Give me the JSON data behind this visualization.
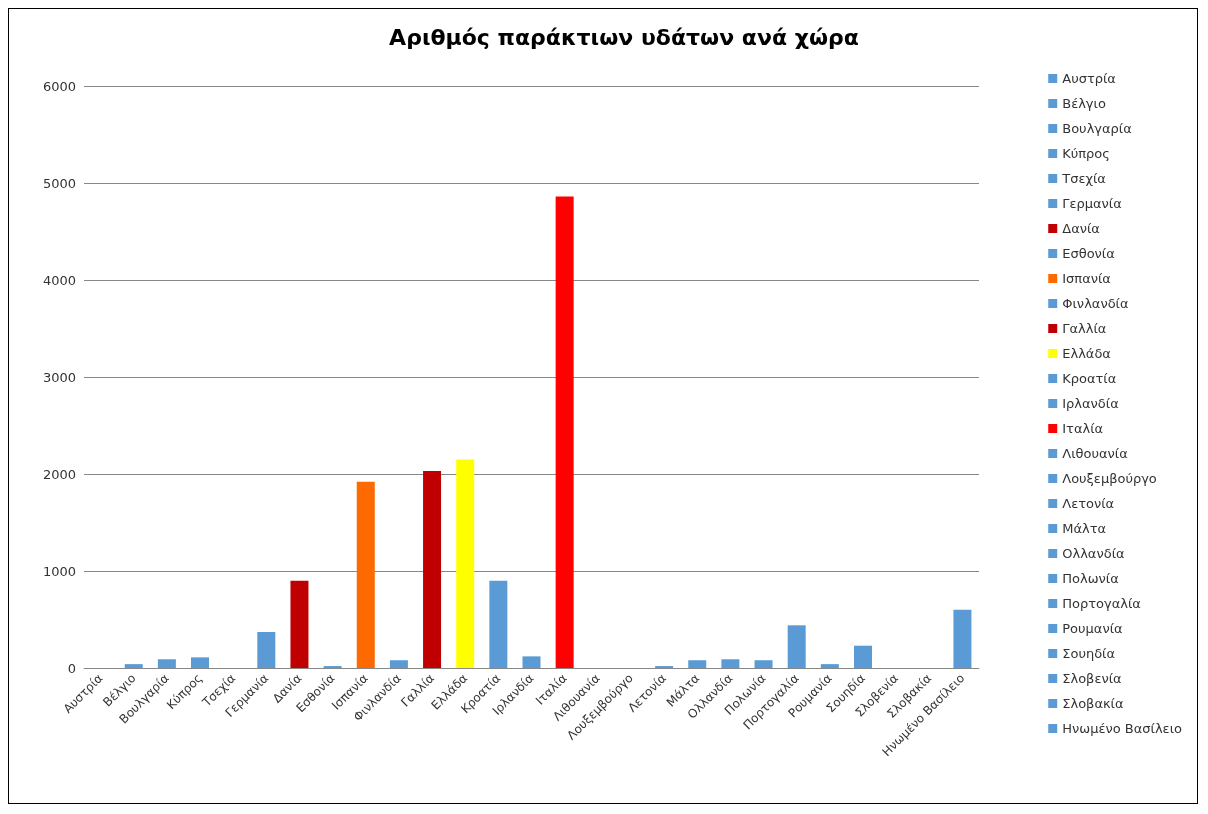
{
  "chart_data": {
    "type": "bar",
    "title": "Αριθμός παράκτιων υδάτων ανά χώρα",
    "categories": [
      "Αυστρία",
      "Βέλγιο",
      "Βουλγαρία",
      "Κύπρος",
      "Τσεχία",
      "Γερμανία",
      "Δανία",
      "Εσθονία",
      "Ισπανία",
      "Φινλανδία",
      "Γαλλία",
      "Ελλάδα",
      "Κροατία",
      "Ιρλανδία",
      "Ιταλία",
      "Λιθουανία",
      "Λουξεμβούργο",
      "Λετονία",
      "Μάλτα",
      "Ολλανδία",
      "Πολωνία",
      "Πορτογαλία",
      "Ρουμανία",
      "Σουηδία",
      "Σλοβενία",
      "Σλοβακία",
      "Ηνωμένο Βασίλειο"
    ],
    "series": [
      {
        "name": "Αυστρία",
        "color": "#5b9bd5",
        "values": [
          0,
          null,
          null,
          null,
          null,
          null,
          null,
          null,
          null,
          null,
          null,
          null,
          null,
          null,
          null,
          null,
          null,
          null,
          null,
          null,
          null,
          null,
          null,
          null,
          null,
          null,
          null
        ]
      },
      {
        "name": "Βέλγιο",
        "color": "#5b9bd5",
        "values": [
          null,
          40,
          null,
          null,
          null,
          null,
          null,
          null,
          null,
          null,
          null,
          null,
          null,
          null,
          null,
          null,
          null,
          null,
          null,
          null,
          null,
          null,
          null,
          null,
          null,
          null,
          null
        ]
      },
      {
        "name": "Βουλγαρία",
        "color": "#5b9bd5",
        "values": [
          null,
          null,
          90,
          null,
          null,
          null,
          null,
          null,
          null,
          null,
          null,
          null,
          null,
          null,
          null,
          null,
          null,
          null,
          null,
          null,
          null,
          null,
          null,
          null,
          null,
          null,
          null
        ]
      },
      {
        "name": "Κύπρος",
        "color": "#5b9bd5",
        "values": [
          null,
          null,
          null,
          110,
          null,
          null,
          null,
          null,
          null,
          null,
          null,
          null,
          null,
          null,
          null,
          null,
          null,
          null,
          null,
          null,
          null,
          null,
          null,
          null,
          null,
          null,
          null
        ]
      },
      {
        "name": "Τσεχία",
        "color": "#5b9bd5",
        "values": [
          null,
          null,
          null,
          null,
          0,
          null,
          null,
          null,
          null,
          null,
          null,
          null,
          null,
          null,
          null,
          null,
          null,
          null,
          null,
          null,
          null,
          null,
          null,
          null,
          null,
          null,
          null
        ]
      },
      {
        "name": "Γερμανία",
        "color": "#5b9bd5",
        "values": [
          null,
          null,
          null,
          null,
          null,
          370,
          null,
          null,
          null,
          null,
          null,
          null,
          null,
          null,
          null,
          null,
          null,
          null,
          null,
          null,
          null,
          null,
          null,
          null,
          null,
          null,
          null
        ]
      },
      {
        "name": "Δανία",
        "color": "#c00000",
        "values": [
          null,
          null,
          null,
          null,
          null,
          null,
          900,
          null,
          null,
          null,
          null,
          null,
          null,
          null,
          null,
          null,
          null,
          null,
          null,
          null,
          null,
          null,
          null,
          null,
          null,
          null,
          null
        ]
      },
      {
        "name": "Εσθονία",
        "color": "#5b9bd5",
        "values": [
          null,
          null,
          null,
          null,
          null,
          null,
          null,
          20,
          null,
          null,
          null,
          null,
          null,
          null,
          null,
          null,
          null,
          null,
          null,
          null,
          null,
          null,
          null,
          null,
          null,
          null,
          null
        ]
      },
      {
        "name": "Ισπανία",
        "color": "#ff6a00",
        "values": [
          null,
          null,
          null,
          null,
          null,
          null,
          null,
          null,
          1920,
          null,
          null,
          null,
          null,
          null,
          null,
          null,
          null,
          null,
          null,
          null,
          null,
          null,
          null,
          null,
          null,
          null,
          null
        ]
      },
      {
        "name": "Φινλανδία",
        "color": "#5b9bd5",
        "values": [
          null,
          null,
          null,
          null,
          null,
          null,
          null,
          null,
          null,
          80,
          null,
          null,
          null,
          null,
          null,
          null,
          null,
          null,
          null,
          null,
          null,
          null,
          null,
          null,
          null,
          null,
          null
        ]
      },
      {
        "name": "Γαλλία",
        "color": "#c00000",
        "values": [
          null,
          null,
          null,
          null,
          null,
          null,
          null,
          null,
          null,
          null,
          2030,
          null,
          null,
          null,
          null,
          null,
          null,
          null,
          null,
          null,
          null,
          null,
          null,
          null,
          null,
          null,
          null
        ]
      },
      {
        "name": "Ελλάδα",
        "color": "#ffff00",
        "values": [
          null,
          null,
          null,
          null,
          null,
          null,
          null,
          null,
          null,
          null,
          null,
          2150,
          null,
          null,
          null,
          null,
          null,
          null,
          null,
          null,
          null,
          null,
          null,
          null,
          null,
          null,
          null
        ]
      },
      {
        "name": "Κροατία",
        "color": "#5b9bd5",
        "values": [
          null,
          null,
          null,
          null,
          null,
          null,
          null,
          null,
          null,
          null,
          null,
          null,
          900,
          null,
          null,
          null,
          null,
          null,
          null,
          null,
          null,
          null,
          null,
          null,
          null,
          null,
          null
        ]
      },
      {
        "name": "Ιρλανδία",
        "color": "#5b9bd5",
        "values": [
          null,
          null,
          null,
          null,
          null,
          null,
          null,
          null,
          null,
          null,
          null,
          null,
          null,
          120,
          null,
          null,
          null,
          null,
          null,
          null,
          null,
          null,
          null,
          null,
          null,
          null,
          null
        ]
      },
      {
        "name": "Ιταλία",
        "color": "#ff0000",
        "values": [
          null,
          null,
          null,
          null,
          null,
          null,
          null,
          null,
          null,
          null,
          null,
          null,
          null,
          null,
          4860,
          null,
          null,
          null,
          null,
          null,
          null,
          null,
          null,
          null,
          null,
          null,
          null
        ]
      },
      {
        "name": "Λιθουανία",
        "color": "#5b9bd5",
        "values": [
          null,
          null,
          null,
          null,
          null,
          null,
          null,
          null,
          null,
          null,
          null,
          null,
          null,
          null,
          null,
          0,
          null,
          null,
          null,
          null,
          null,
          null,
          null,
          null,
          null,
          null,
          null
        ]
      },
      {
        "name": "Λουξεμβούργο",
        "color": "#5b9bd5",
        "values": [
          null,
          null,
          null,
          null,
          null,
          null,
          null,
          null,
          null,
          null,
          null,
          null,
          null,
          null,
          null,
          null,
          0,
          null,
          null,
          null,
          null,
          null,
          null,
          null,
          null,
          null,
          null
        ]
      },
      {
        "name": "Λετονία",
        "color": "#5b9bd5",
        "values": [
          null,
          null,
          null,
          null,
          null,
          null,
          null,
          null,
          null,
          null,
          null,
          null,
          null,
          null,
          null,
          null,
          null,
          20,
          null,
          null,
          null,
          null,
          null,
          null,
          null,
          null,
          null
        ]
      },
      {
        "name": "Μάλτα",
        "color": "#5b9bd5",
        "values": [
          null,
          null,
          null,
          null,
          null,
          null,
          null,
          null,
          null,
          null,
          null,
          null,
          null,
          null,
          null,
          null,
          null,
          null,
          80,
          null,
          null,
          null,
          null,
          null,
          null,
          null,
          null
        ]
      },
      {
        "name": "Ολλανδία",
        "color": "#5b9bd5",
        "values": [
          null,
          null,
          null,
          null,
          null,
          null,
          null,
          null,
          null,
          null,
          null,
          null,
          null,
          null,
          null,
          null,
          null,
          null,
          null,
          90,
          null,
          null,
          null,
          null,
          null,
          null,
          null
        ]
      },
      {
        "name": "Πολωνία",
        "color": "#5b9bd5",
        "values": [
          null,
          null,
          null,
          null,
          null,
          null,
          null,
          null,
          null,
          null,
          null,
          null,
          null,
          null,
          null,
          null,
          null,
          null,
          null,
          null,
          80,
          null,
          null,
          null,
          null,
          null,
          null
        ]
      },
      {
        "name": "Πορτογαλία",
        "color": "#5b9bd5",
        "values": [
          null,
          null,
          null,
          null,
          null,
          null,
          null,
          null,
          null,
          null,
          null,
          null,
          null,
          null,
          null,
          null,
          null,
          null,
          null,
          null,
          null,
          440,
          null,
          null,
          null,
          null,
          null
        ]
      },
      {
        "name": "Ρουμανία",
        "color": "#5b9bd5",
        "values": [
          null,
          null,
          null,
          null,
          null,
          null,
          null,
          null,
          null,
          null,
          null,
          null,
          null,
          null,
          null,
          null,
          null,
          null,
          null,
          null,
          null,
          null,
          40,
          null,
          null,
          null,
          null
        ]
      },
      {
        "name": "Σουηδία",
        "color": "#5b9bd5",
        "values": [
          null,
          null,
          null,
          null,
          null,
          null,
          null,
          null,
          null,
          null,
          null,
          null,
          null,
          null,
          null,
          null,
          null,
          null,
          null,
          null,
          null,
          null,
          null,
          230,
          null,
          null,
          null
        ]
      },
      {
        "name": "Σλοβενία",
        "color": "#5b9bd5",
        "values": [
          null,
          null,
          null,
          null,
          null,
          null,
          null,
          null,
          null,
          null,
          null,
          null,
          null,
          null,
          null,
          null,
          null,
          null,
          null,
          null,
          null,
          null,
          null,
          null,
          0,
          null,
          null
        ]
      },
      {
        "name": "Σλοβακία",
        "color": "#5b9bd5",
        "values": [
          null,
          null,
          null,
          null,
          null,
          null,
          null,
          null,
          null,
          null,
          null,
          null,
          null,
          null,
          null,
          null,
          null,
          null,
          null,
          null,
          null,
          null,
          null,
          null,
          null,
          0,
          null
        ]
      },
      {
        "name": "Ηνωμένο Βασίλειο",
        "color": "#5b9bd5",
        "values": [
          null,
          null,
          null,
          null,
          null,
          null,
          null,
          null,
          null,
          null,
          null,
          null,
          null,
          null,
          null,
          null,
          null,
          null,
          null,
          null,
          null,
          null,
          null,
          null,
          null,
          null,
          600
        ]
      }
    ],
    "ylim": [
      0,
      6000
    ],
    "yticks": [
      0,
      1000,
      2000,
      3000,
      4000,
      5000,
      6000
    ],
    "grid": "y",
    "legend": "right"
  }
}
